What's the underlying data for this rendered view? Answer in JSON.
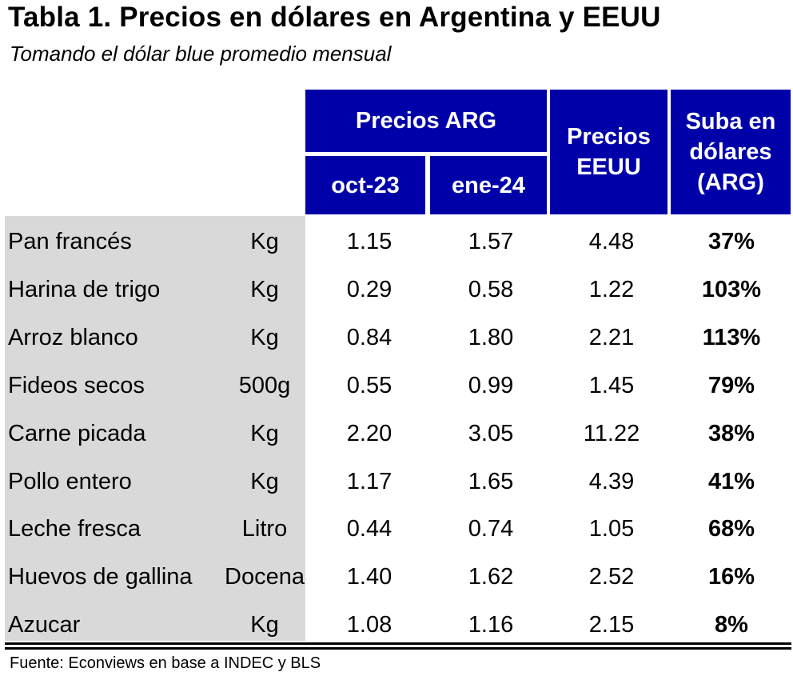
{
  "title": "Tabla 1. Precios en dólares en Argentina y EEUU",
  "subtitle": "Tomando el dólar blue promedio mensual",
  "header": {
    "group_arg": "Precios ARG",
    "oct": "oct-23",
    "ene": "ene-24",
    "usa": "Precios\nEEUU",
    "suba": "Suba en\ndólares\n(ARG)"
  },
  "rows": [
    {
      "product": "Pan francés",
      "unit": "Kg",
      "oct": "1.15",
      "ene": "1.57",
      "usa": "4.48",
      "suba": "37%"
    },
    {
      "product": "Harina de trigo",
      "unit": "Kg",
      "oct": "0.29",
      "ene": "0.58",
      "usa": "1.22",
      "suba": "103%"
    },
    {
      "product": "Arroz blanco",
      "unit": "Kg",
      "oct": "0.84",
      "ene": "1.80",
      "usa": "2.21",
      "suba": "113%"
    },
    {
      "product": "Fideos secos",
      "unit": "500g",
      "oct": "0.55",
      "ene": "0.99",
      "usa": "1.45",
      "suba": "79%"
    },
    {
      "product": "Carne picada",
      "unit": "Kg",
      "oct": "2.20",
      "ene": "3.05",
      "usa": "11.22",
      "suba": "38%"
    },
    {
      "product": "Pollo entero",
      "unit": "Kg",
      "oct": "1.17",
      "ene": "1.65",
      "usa": "4.39",
      "suba": "41%"
    },
    {
      "product": "Leche fresca",
      "unit": "Litro",
      "oct": "0.44",
      "ene": "0.74",
      "usa": "1.05",
      "suba": "68%"
    },
    {
      "product": "Huevos de gallina",
      "unit": "Docena",
      "oct": "1.40",
      "ene": "1.62",
      "usa": "2.52",
      "suba": "16%"
    },
    {
      "product": "Azucar",
      "unit": "Kg",
      "oct": "1.08",
      "ene": "1.16",
      "usa": "2.15",
      "suba": "8%"
    }
  ],
  "source": "Fuente: Econviews en base a INDEC y BLS",
  "colors": {
    "header_bg": "#0000a8",
    "header_text": "#ffffff",
    "label_bg": "#d9d9d9"
  }
}
